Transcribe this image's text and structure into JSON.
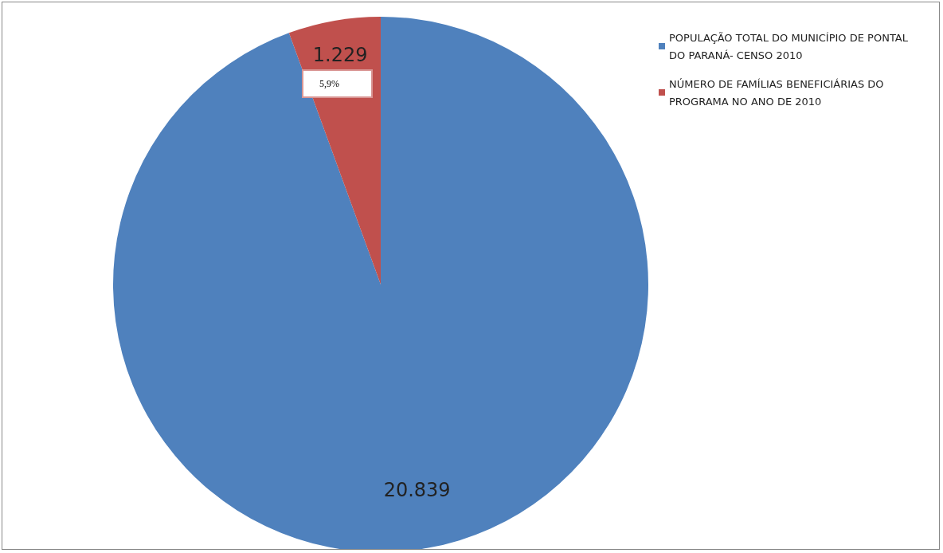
{
  "chart_data": {
    "type": "pie",
    "categories": [
      "POPULAÇÃO TOTAL DO MUNICÍPIO DE PONTAL DO PARANÁ- CENSO 2010",
      "NÚMERO DE FAMÍLIAS BENEFICIÁRIAS DO PROGRAMA NO ANO DE 2010"
    ],
    "values": [
      20839,
      1229
    ],
    "value_labels": [
      "20.839",
      "1.229"
    ],
    "colors": [
      "#4f81bd",
      "#c0504d"
    ],
    "annotations": [
      "5,9%"
    ],
    "legend": "top right"
  }
}
